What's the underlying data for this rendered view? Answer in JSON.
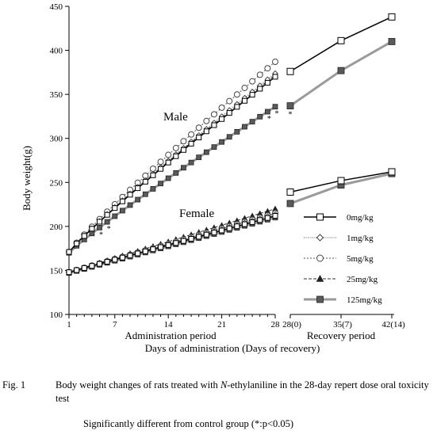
{
  "chart_data": {
    "type": "line",
    "ylabel": "Body weight(g)",
    "ylim": [
      100,
      450
    ],
    "yticks": [
      100,
      150,
      200,
      250,
      300,
      350,
      400,
      450
    ],
    "xlabel_admin": "Administration period",
    "xlabel_recovery": "Recovery period",
    "xlabel_main": "Days of administration (Days of recovery)",
    "admin_ticks": [
      "1",
      "7",
      "14",
      "21",
      "28"
    ],
    "recovery_ticks": [
      "28(0)",
      "35(7)",
      "42(14)"
    ],
    "group_labels": [
      "Male",
      "Female"
    ],
    "significance_mark": "*",
    "legend": [
      "0mg/kg",
      "1mg/kg",
      "5mg/kg",
      "25mg/kg",
      "125mg/kg"
    ],
    "series": [
      {
        "key": "0",
        "legend": "0mg/kg",
        "recovery_groups": [
          "0mg/kg",
          "125mg/kg"
        ]
      },
      {
        "key": "1",
        "legend": "1mg/kg"
      },
      {
        "key": "5",
        "legend": "5mg/kg"
      },
      {
        "key": "25",
        "legend": "25mg/kg"
      },
      {
        "key": "125",
        "legend": "125mg/kg"
      }
    ],
    "male": {
      "admin_start": {
        "0": 171,
        "1": 171,
        "5": 171,
        "25": 171,
        "125": 170
      },
      "admin_end": {
        "0": 370,
        "1": 374,
        "5": 387,
        "25": 372,
        "125": 336
      },
      "recovery": {
        "0": [
          376,
          411,
          438
        ],
        "125": [
          337,
          377,
          410
        ]
      },
      "significant_days": [
        5,
        6,
        27,
        28
      ]
    },
    "female": {
      "admin_start": {
        "0": 148,
        "1": 148,
        "5": 148,
        "25": 148,
        "125": 147
      },
      "admin_end": {
        "0": 212,
        "1": 214,
        "5": 215,
        "25": 220,
        "125": 210
      },
      "recovery": {
        "0": [
          239,
          252,
          262
        ],
        "125": [
          226,
          247,
          260
        ]
      }
    }
  },
  "caption": {
    "fig_label": "Fig. 1",
    "text_before": "Body weight changes of rats treated with ",
    "text_italic": "N",
    "text_after": "-ethylaniline in the 28-day repert dose oral toxicity test"
  },
  "significance_note": "Significantly different from control group (*:p<0.05)"
}
